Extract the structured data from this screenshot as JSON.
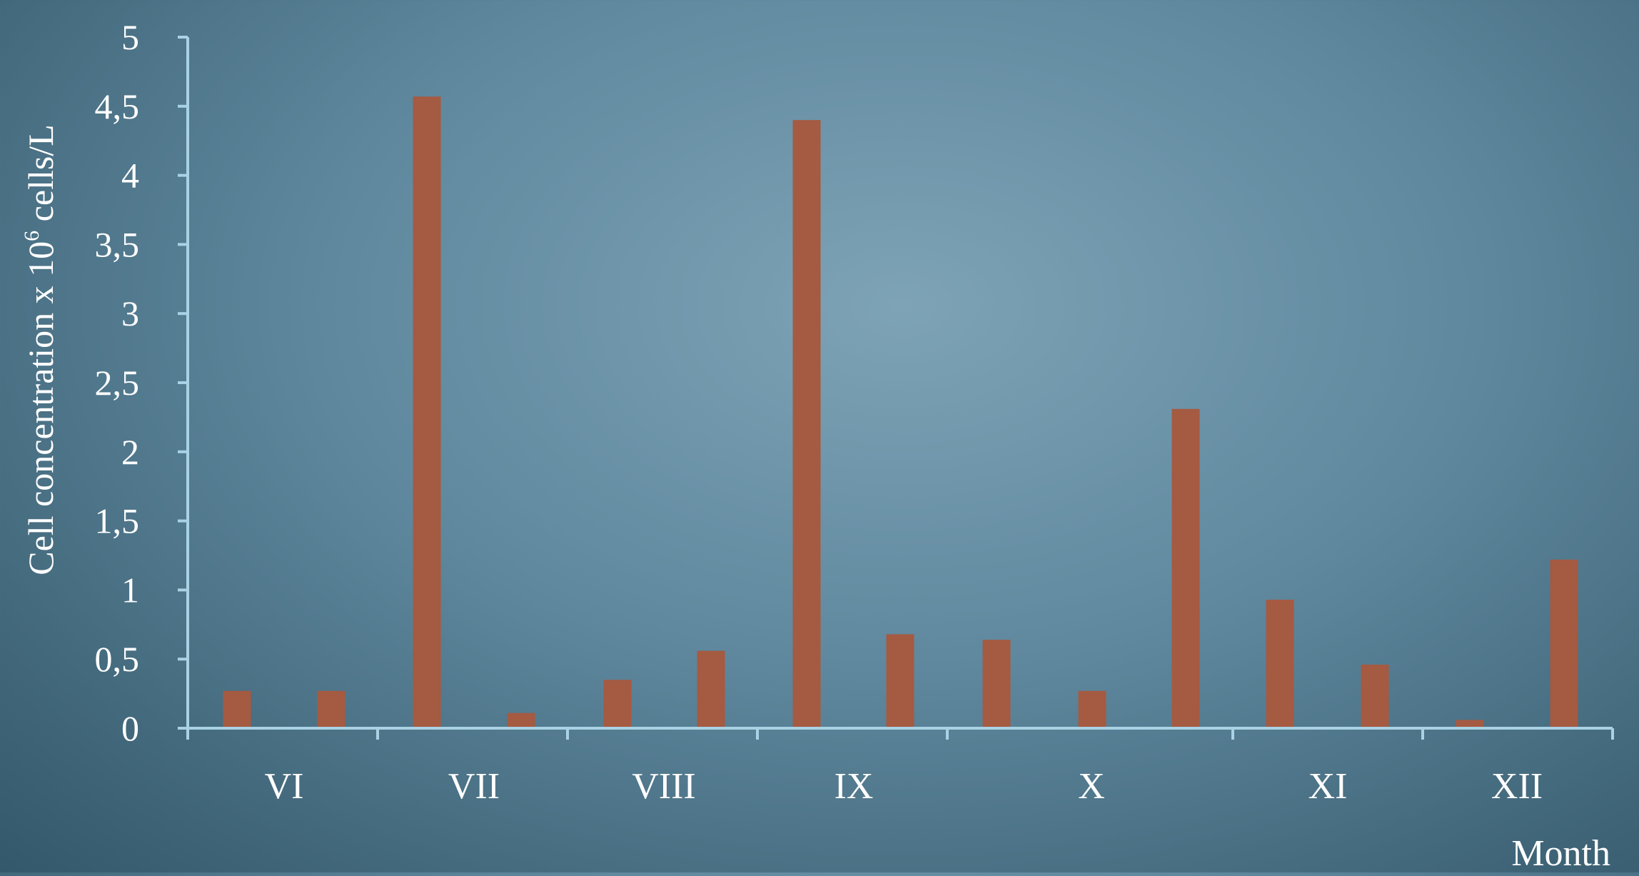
{
  "chart_data": {
    "type": "bar",
    "ylabel": "Cell concentration x 10",
    "ylabel_superscript": "6",
    "ylabel_suffix": " cells/L",
    "xlabel": "Month",
    "ylim": [
      0,
      5
    ],
    "y_ticks": [
      0,
      0.5,
      1,
      1.5,
      2,
      2.5,
      3,
      3.5,
      4,
      4.5,
      5
    ],
    "y_tick_labels": [
      "0",
      "0,5",
      "1",
      "1,5",
      "2",
      "2,5",
      "3",
      "3,5",
      "4",
      "4,5",
      "5"
    ],
    "groups": [
      {
        "label": "VI",
        "values": [
          0.27,
          0.27
        ]
      },
      {
        "label": "VII",
        "values": [
          4.57,
          0.11
        ]
      },
      {
        "label": "VIII",
        "values": [
          0.35,
          0.56
        ]
      },
      {
        "label": "IX",
        "values": [
          4.4,
          0.68
        ]
      },
      {
        "label": "X",
        "values": [
          0.64,
          0.27,
          2.31
        ]
      },
      {
        "label": "XI",
        "values": [
          0.93,
          0.46
        ]
      },
      {
        "label": "XII",
        "values": [
          0.06,
          1.22
        ]
      }
    ],
    "bar_color": "#a55a42",
    "axis_color": "#a9d2e4",
    "text_color": "#ffffff",
    "grid": false,
    "legend": "none"
  }
}
